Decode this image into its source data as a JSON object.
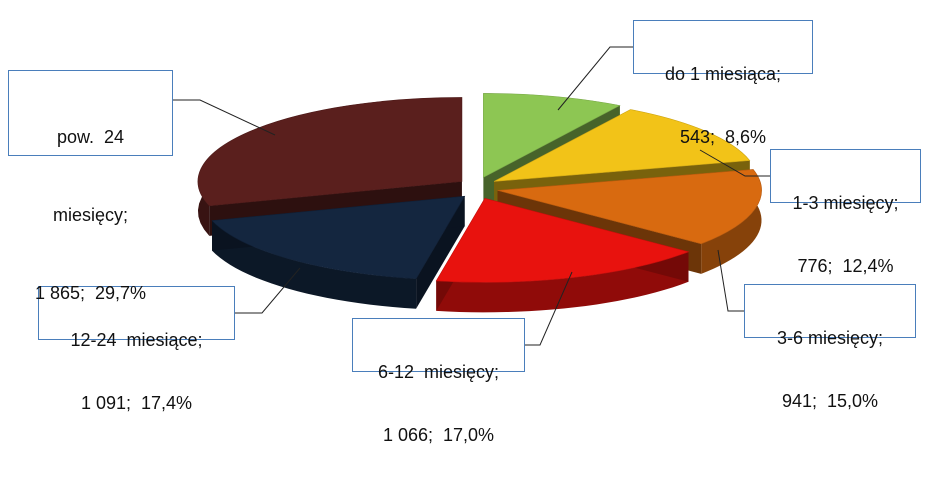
{
  "chart_data": {
    "type": "pie",
    "title": "",
    "unit": "",
    "slices": [
      {
        "label": "do 1 miesiąca;",
        "value_text": "543;  8,6%",
        "value": 543,
        "percent": 8.6,
        "color": "#8dc653"
      },
      {
        "label": "1-3 miesięcy;",
        "value_text": "776;  12,4%",
        "value": 776,
        "percent": 12.4,
        "color": "#f2c318"
      },
      {
        "label": "3-6 miesięcy;",
        "value_text": "941;  15,0%",
        "value": 941,
        "percent": 15.0,
        "color": "#d86a10"
      },
      {
        "label": "6-12  miesięcy;",
        "value_text": "1 066;  17,0%",
        "value": 1066,
        "percent": 17.0,
        "color": "#e8120e"
      },
      {
        "label": "12-24  miesiące;",
        "value_text": "1 091;  17,4%",
        "value": 1091,
        "percent": 17.4,
        "color": "#14263f"
      },
      {
        "label": "pow.  24",
        "label2": "miesięcy;",
        "value_text": "1 865;  29,7%",
        "value": 1865,
        "percent": 29.7,
        "color": "#5a1f1d"
      }
    ]
  }
}
